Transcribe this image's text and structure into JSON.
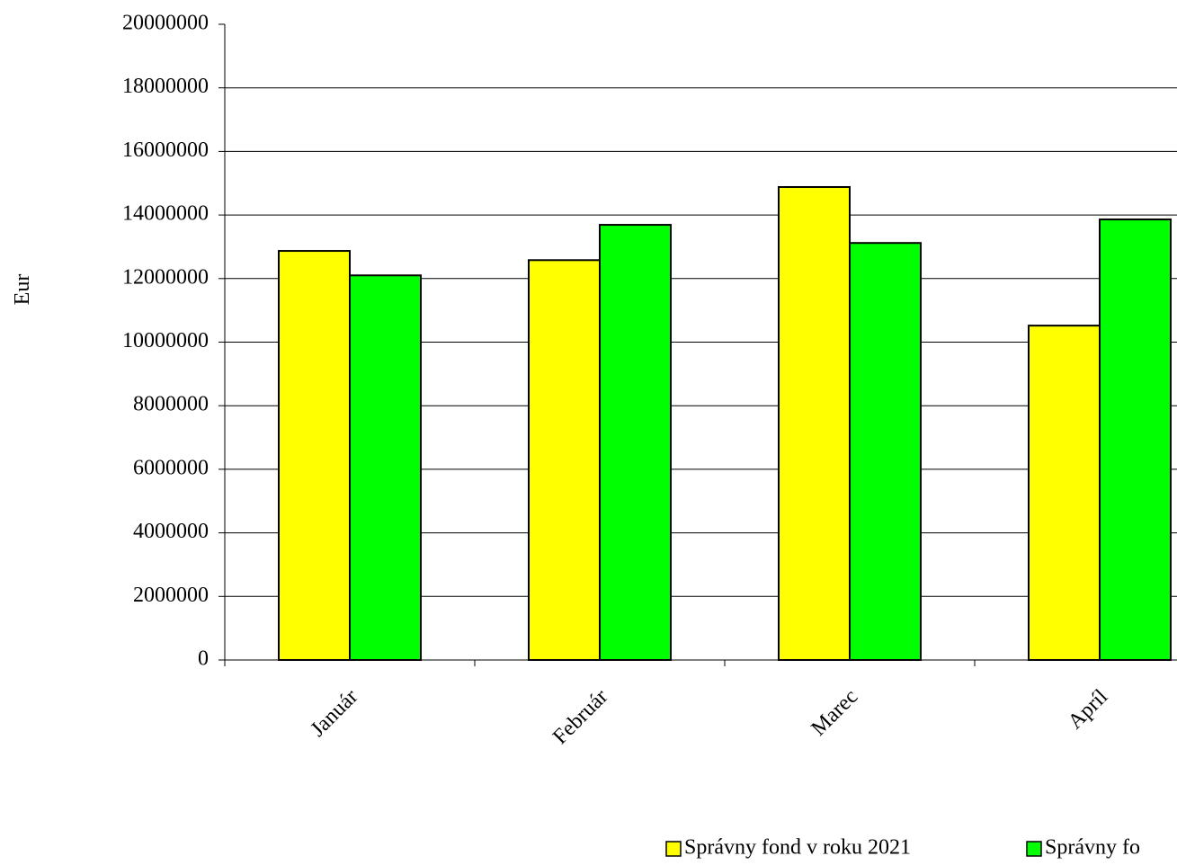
{
  "chart_data": {
    "type": "bar",
    "y_label": "Eur",
    "categories": [
      "Január",
      "Február",
      "Marec",
      "Apríl"
    ],
    "series": [
      {
        "name": "Správny fond v roku 2021",
        "color": "#ffff00",
        "values": [
          12870000,
          12580000,
          14880000,
          10520000
        ]
      },
      {
        "name": "Správny fo",
        "color": "#00ff00",
        "values": [
          12100000,
          13690000,
          13120000,
          13860000
        ]
      }
    ],
    "ylim": [
      0,
      20000000
    ],
    "yticks": [
      0,
      2000000,
      4000000,
      6000000,
      8000000,
      10000000,
      12000000,
      14000000,
      16000000,
      18000000,
      20000000
    ],
    "grid": true
  }
}
